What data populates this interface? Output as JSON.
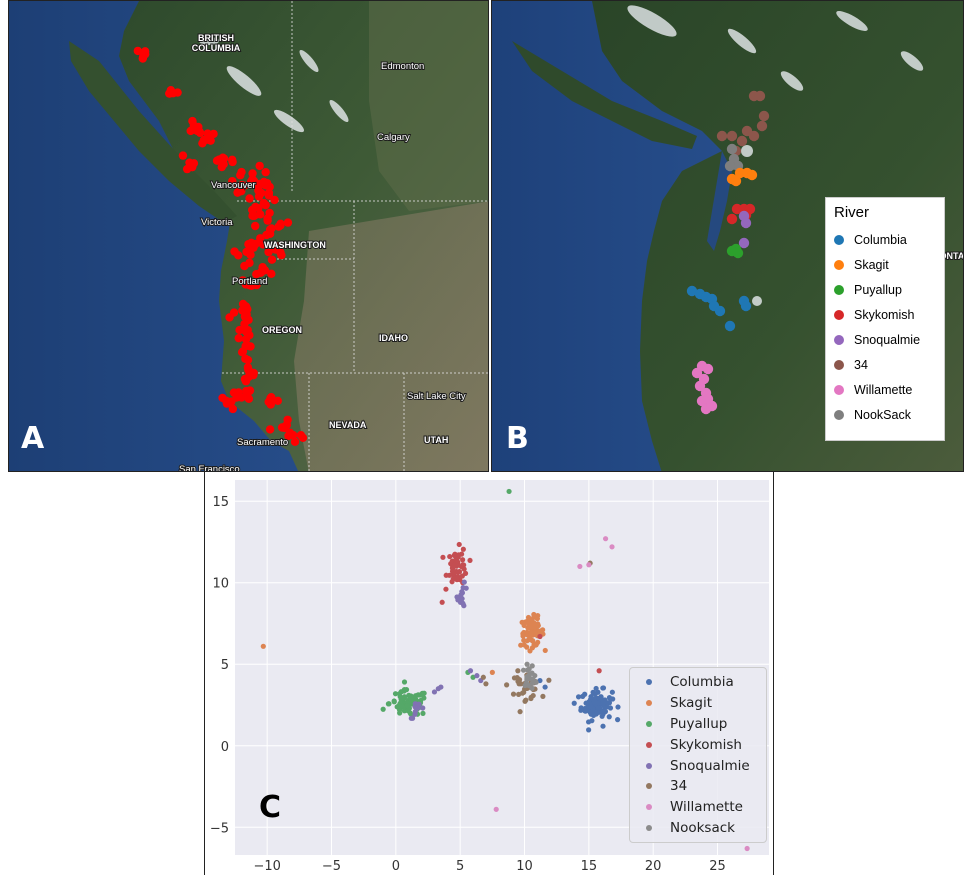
{
  "panel_a": {
    "letter": "A",
    "region_labels": [
      "BRITISH\nCOLUMBIA",
      "WASHINGTON",
      "OREGON",
      "IDAHO",
      "NEVADA",
      "UTAH",
      "MONTAN"
    ],
    "labels": {
      "british_columbia_1": "BRITISH",
      "british_columbia_2": "COLUMBIA",
      "washington": "WASHINGTON",
      "oregon": "OREGON",
      "idaho": "IDAHO",
      "nevada": "NEVADA",
      "utah": "UTAH",
      "edmonton": "Edmonton",
      "calgary": "Calgary",
      "vancouver": "Vancouver",
      "victoria": "Victoria",
      "portland": "Portland",
      "salt_lake_city": "Salt Lake City",
      "sacramento": "Sacramento",
      "san_francisco": "San Francisco"
    },
    "marker_color": "#ff0000"
  },
  "panel_b": {
    "letter": "B",
    "labels": {
      "montana": "MONTAN"
    },
    "legend_title": "River",
    "legend": [
      {
        "name": "Columbia",
        "color": "#1f77b4"
      },
      {
        "name": "Skagit",
        "color": "#ff7f0e"
      },
      {
        "name": "Puyallup",
        "color": "#2ca02c"
      },
      {
        "name": "Skykomish",
        "color": "#d62728"
      },
      {
        "name": "Snoqualmie",
        "color": "#9467bd"
      },
      {
        "name": "34",
        "color": "#8c564b"
      },
      {
        "name": "Willamette",
        "color": "#e377c2"
      },
      {
        "name": "NookSack",
        "color": "#7f7f7f"
      }
    ]
  },
  "panel_c": {
    "letter": "C",
    "legend": [
      {
        "name": "Columbia",
        "color": "#4c72b0"
      },
      {
        "name": "Skagit",
        "color": "#dd8452"
      },
      {
        "name": "Puyallup",
        "color": "#55a868"
      },
      {
        "name": "Skykomish",
        "color": "#c44e52"
      },
      {
        "name": "Snoqualmie",
        "color": "#8172b3"
      },
      {
        "name": "34",
        "color": "#937860"
      },
      {
        "name": "Willamette",
        "color": "#da8bc3"
      },
      {
        "name": "Nooksack",
        "color": "#8c8c8c"
      }
    ]
  },
  "chart_data": {
    "type": "scatter",
    "title": "",
    "xlabel": "",
    "ylabel": "",
    "xlim": [
      -12.5,
      29
    ],
    "ylim": [
      -6.7,
      16.3
    ],
    "xticks": [
      -10,
      -5,
      0,
      5,
      10,
      15,
      20,
      25
    ],
    "yticks": [
      -5,
      0,
      5,
      10,
      15
    ],
    "grid": true,
    "legend_position": "lower-right",
    "series": [
      {
        "name": "Columbia",
        "color": "#4c72b0",
        "clusters": [
          {
            "cx": 15.6,
            "cy": 2.5,
            "sx": 0.6,
            "sy": 0.45,
            "n": 90
          }
        ],
        "points": [
          [
            14.2,
            3.0
          ],
          [
            11.6,
            3.6
          ],
          [
            16.1,
            1.2
          ],
          [
            11.2,
            4.0
          ]
        ]
      },
      {
        "name": "Skagit",
        "color": "#dd8452",
        "clusters": [
          {
            "cx": 10.6,
            "cy": 7.0,
            "sx": 0.45,
            "sy": 0.45,
            "n": 70
          }
        ],
        "points": [
          [
            -10.3,
            6.1
          ],
          [
            7.5,
            4.5
          ],
          [
            11.0,
            7.8
          ]
        ]
      },
      {
        "name": "Puyallup",
        "color": "#55a868",
        "clusters": [
          {
            "cx": 1.0,
            "cy": 2.6,
            "sx": 0.75,
            "sy": 0.4,
            "n": 85
          }
        ],
        "points": [
          [
            8.8,
            15.6
          ],
          [
            5.6,
            4.5
          ],
          [
            6.0,
            4.2
          ]
        ]
      },
      {
        "name": "Skykomish",
        "color": "#c44e52",
        "clusters": [
          {
            "cx": 4.8,
            "cy": 11.0,
            "sx": 0.4,
            "sy": 0.55,
            "n": 50
          }
        ],
        "points": [
          [
            3.6,
            8.8
          ],
          [
            15.8,
            4.6
          ],
          [
            11.2,
            6.7
          ]
        ]
      },
      {
        "name": "Snoqualmie",
        "color": "#8172b3",
        "clusters": [
          {
            "cx": 5.2,
            "cy": 9.2,
            "sx": 0.2,
            "sy": 0.35,
            "n": 14
          },
          {
            "cx": 1.7,
            "cy": 2.2,
            "sx": 0.3,
            "sy": 0.25,
            "n": 10
          }
        ],
        "points": [
          [
            3.0,
            3.3
          ],
          [
            3.3,
            3.5
          ],
          [
            3.5,
            3.6
          ],
          [
            6.3,
            4.3
          ],
          [
            6.6,
            4.0
          ],
          [
            5.8,
            4.6
          ]
        ]
      },
      {
        "name": "34",
        "color": "#937860",
        "clusters": [
          {
            "cx": 10.0,
            "cy": 3.7,
            "sx": 0.6,
            "sy": 0.4,
            "n": 40
          }
        ],
        "points": [
          [
            15.1,
            11.2
          ],
          [
            6.8,
            4.2
          ],
          [
            7.0,
            3.8
          ],
          [
            10.5,
            2.9
          ],
          [
            10.1,
            2.8
          ]
        ]
      },
      {
        "name": "Willamette",
        "color": "#da8bc3",
        "points": [
          [
            16.3,
            12.7
          ],
          [
            16.8,
            12.2
          ],
          [
            14.3,
            11.0
          ],
          [
            15.0,
            11.1
          ],
          [
            7.8,
            -3.9
          ],
          [
            27.3,
            -6.3
          ]
        ]
      },
      {
        "name": "Nooksack",
        "color": "#8c8c8c",
        "clusters": [
          {
            "cx": 10.4,
            "cy": 4.2,
            "sx": 0.3,
            "sy": 0.3,
            "n": 18
          }
        ],
        "points": [
          [
            10.2,
            5.0
          ],
          [
            10.6,
            4.9
          ]
        ]
      }
    ]
  }
}
